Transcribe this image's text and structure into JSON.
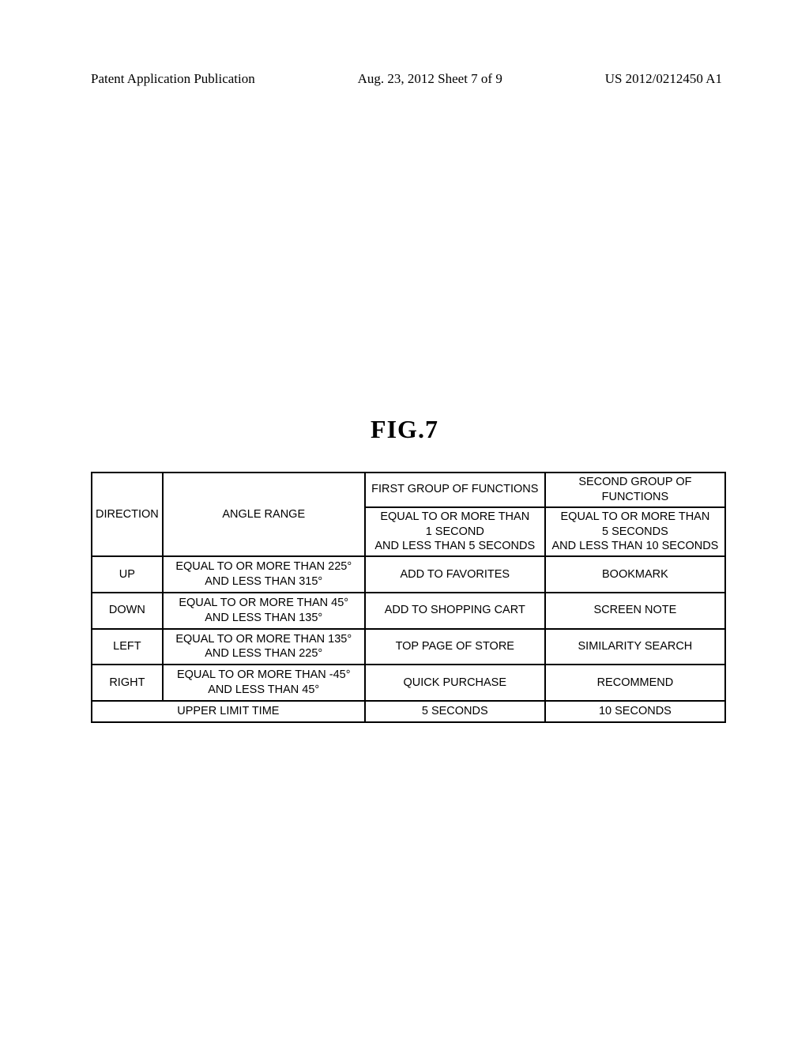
{
  "header": {
    "left": "Patent Application Publication",
    "center": "Aug. 23, 2012  Sheet 7 of 9",
    "right": "US 2012/0212450 A1"
  },
  "figure_label": "FIG.7",
  "table": {
    "header_row1": {
      "direction": "DIRECTION",
      "angle_range": "ANGLE RANGE",
      "group1_title": "FIRST GROUP OF FUNCTIONS",
      "group2_title": "SECOND GROUP OF FUNCTIONS"
    },
    "header_row2": {
      "group1_sub_l1": "EQUAL TO OR MORE THAN",
      "group1_sub_l2": "1 SECOND",
      "group1_sub_l3": "AND LESS THAN 5 SECONDS",
      "group2_sub_l1": "EQUAL TO OR MORE THAN",
      "group2_sub_l2": "5 SECONDS",
      "group2_sub_l3": "AND LESS THAN 10 SECONDS"
    },
    "rows": [
      {
        "direction": "UP",
        "angle_l1": "EQUAL TO OR MORE THAN 225°",
        "angle_l2": "AND LESS THAN 315°",
        "group1": "ADD TO FAVORITES",
        "group2": "BOOKMARK"
      },
      {
        "direction": "DOWN",
        "angle_l1": "EQUAL TO OR MORE THAN 45°",
        "angle_l2": "AND LESS THAN 135°",
        "group1": "ADD TO SHOPPING CART",
        "group2": "SCREEN NOTE"
      },
      {
        "direction": "LEFT",
        "angle_l1": "EQUAL TO OR MORE THAN 135°",
        "angle_l2": "AND LESS THAN 225°",
        "group1": "TOP PAGE OF STORE",
        "group2": "SIMILARITY SEARCH"
      },
      {
        "direction": "RIGHT",
        "angle_l1": "EQUAL TO OR MORE THAN -45°",
        "angle_l2": "AND LESS THAN 45°",
        "group1": "QUICK PURCHASE",
        "group2": "RECOMMEND"
      }
    ],
    "footer": {
      "label": "UPPER LIMIT TIME",
      "group1": "5 SECONDS",
      "group2": "10 SECONDS"
    }
  }
}
